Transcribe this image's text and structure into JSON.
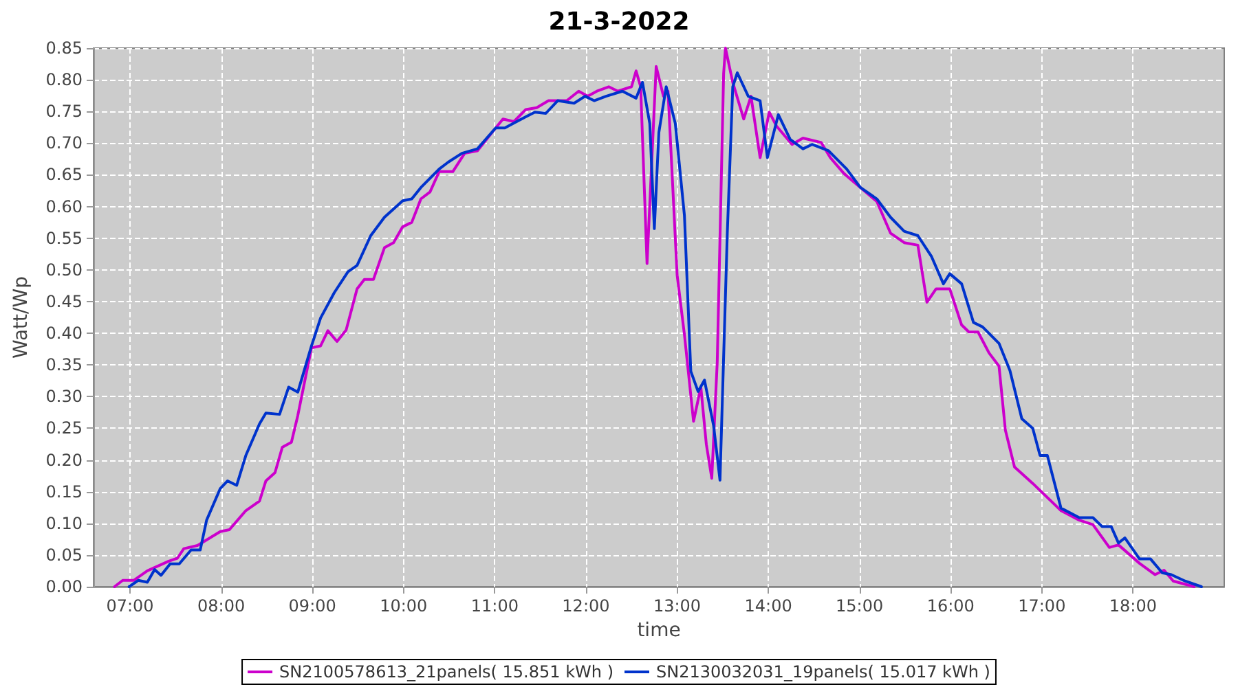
{
  "chart_data": {
    "type": "line",
    "title": "21-3-2022",
    "xlabel": "time",
    "ylabel": "Watt/Wp",
    "legend": "bottom",
    "grid": true,
    "line_style": "solid",
    "xlim": [
      6.6,
      19.0
    ],
    "xticks": [
      {
        "value": 7,
        "label": "07:00"
      },
      {
        "value": 8,
        "label": "08:00"
      },
      {
        "value": 9,
        "label": "09:00"
      },
      {
        "value": 10,
        "label": "10:00"
      },
      {
        "value": 11,
        "label": "11:00"
      },
      {
        "value": 12,
        "label": "12:00"
      },
      {
        "value": 13,
        "label": "13:00"
      },
      {
        "value": 14,
        "label": "14:00"
      },
      {
        "value": 15,
        "label": "15:00"
      },
      {
        "value": 16,
        "label": "16:00"
      },
      {
        "value": 17,
        "label": "17:00"
      },
      {
        "value": 18,
        "label": "18:00"
      }
    ],
    "ylim": [
      0,
      0.85
    ],
    "yticks": [
      {
        "value": 0,
        "label": "0.00"
      },
      {
        "value": 0.05,
        "label": "0.05"
      },
      {
        "value": 0.1,
        "label": "0.10"
      },
      {
        "value": 0.15,
        "label": "0.15"
      },
      {
        "value": 0.2,
        "label": "0.20"
      },
      {
        "value": 0.25,
        "label": "0.25"
      },
      {
        "value": 0.3,
        "label": "0.30"
      },
      {
        "value": 0.35,
        "label": "0.35"
      },
      {
        "value": 0.4,
        "label": "0.40"
      },
      {
        "value": 0.45,
        "label": "0.45"
      },
      {
        "value": 0.5,
        "label": "0.50"
      },
      {
        "value": 0.55,
        "label": "0.55"
      },
      {
        "value": 0.6,
        "label": "0.60"
      },
      {
        "value": 0.65,
        "label": "0.65"
      },
      {
        "value": 0.7,
        "label": "0.70"
      },
      {
        "value": 0.75,
        "label": "0.75"
      },
      {
        "value": 0.8,
        "label": "0.80"
      },
      {
        "value": 0.85,
        "label": "0.85"
      }
    ],
    "series": [
      {
        "name": "SN2100578613_21panels( 15.851 kWh )",
        "color": "#cc00cc",
        "x": [
          6.83,
          6.92,
          7.04,
          7.19,
          7.42,
          7.52,
          7.59,
          7.74,
          7.99,
          8.09,
          8.27,
          8.42,
          8.49,
          8.59,
          8.67,
          8.77,
          8.84,
          8.99,
          9.09,
          9.17,
          9.27,
          9.37,
          9.49,
          9.57,
          9.67,
          9.79,
          9.89,
          9.99,
          10.09,
          10.19,
          10.29,
          10.39,
          10.54,
          10.67,
          10.81,
          11.01,
          11.09,
          11.21,
          11.34,
          11.46,
          11.59,
          11.79,
          11.92,
          12.02,
          12.12,
          12.25,
          12.35,
          12.5,
          12.55,
          12.6,
          12.67,
          12.77,
          12.85,
          12.9,
          13.0,
          13.08,
          13.18,
          13.26,
          13.32,
          13.38,
          13.44,
          13.51,
          13.53,
          13.61,
          13.73,
          13.81,
          13.91,
          14.01,
          14.09,
          14.26,
          14.38,
          14.58,
          14.68,
          14.83,
          15.01,
          15.19,
          15.34,
          15.49,
          15.64,
          15.74,
          15.84,
          15.99,
          16.12,
          16.2,
          16.3,
          16.42,
          16.53,
          16.6,
          16.7,
          16.9,
          17.21,
          17.41,
          17.56,
          17.74,
          17.84,
          18.07,
          18.24,
          18.34,
          18.44,
          18.67
        ],
        "values": [
          0.0,
          0.01,
          0.01,
          0.025,
          0.04,
          0.045,
          0.06,
          0.065,
          0.087,
          0.09,
          0.12,
          0.135,
          0.167,
          0.18,
          0.22,
          0.228,
          0.27,
          0.377,
          0.38,
          0.404,
          0.387,
          0.405,
          0.47,
          0.485,
          0.485,
          0.535,
          0.543,
          0.568,
          0.575,
          0.612,
          0.623,
          0.655,
          0.655,
          0.684,
          0.688,
          0.724,
          0.738,
          0.734,
          0.753,
          0.756,
          0.767,
          0.767,
          0.782,
          0.774,
          0.782,
          0.789,
          0.782,
          0.789,
          0.814,
          0.789,
          0.51,
          0.821,
          0.774,
          0.782,
          0.492,
          0.398,
          0.261,
          0.315,
          0.225,
          0.171,
          0.355,
          0.81,
          0.85,
          0.796,
          0.738,
          0.774,
          0.677,
          0.749,
          0.727,
          0.698,
          0.708,
          0.701,
          0.677,
          0.652,
          0.63,
          0.608,
          0.558,
          0.543,
          0.539,
          0.449,
          0.47,
          0.47,
          0.413,
          0.402,
          0.402,
          0.369,
          0.348,
          0.247,
          0.189,
          0.163,
          0.12,
          0.105,
          0.098,
          0.062,
          0.066,
          0.037,
          0.019,
          0.026,
          0.009,
          0.0
        ]
      },
      {
        "name": "SN2130032031_19panels( 15.017 kWh )",
        "color": "#0033cc",
        "x": [
          6.99,
          7.09,
          7.19,
          7.27,
          7.34,
          7.44,
          7.54,
          7.67,
          7.77,
          7.84,
          7.99,
          8.07,
          8.17,
          8.27,
          8.42,
          8.49,
          8.64,
          8.74,
          8.84,
          8.99,
          9.09,
          9.24,
          9.39,
          9.49,
          9.64,
          9.79,
          9.99,
          10.09,
          10.19,
          10.39,
          10.49,
          10.64,
          10.81,
          11.01,
          11.11,
          11.24,
          11.44,
          11.56,
          11.69,
          11.87,
          11.99,
          12.09,
          12.22,
          12.4,
          12.55,
          12.62,
          12.7,
          12.75,
          12.8,
          12.88,
          12.98,
          13.08,
          13.15,
          13.23,
          13.3,
          13.4,
          13.47,
          13.55,
          13.61,
          13.66,
          13.78,
          13.91,
          13.99,
          14.11,
          14.24,
          14.38,
          14.48,
          14.66,
          14.86,
          15.01,
          15.19,
          15.34,
          15.49,
          15.64,
          15.79,
          15.92,
          15.99,
          16.12,
          16.25,
          16.35,
          16.53,
          16.65,
          16.78,
          16.9,
          16.98,
          17.06,
          17.21,
          17.41,
          17.56,
          17.66,
          17.76,
          17.84,
          17.91,
          18.07,
          18.19,
          18.32,
          18.42,
          18.57,
          18.75
        ],
        "values": [
          0.0,
          0.01,
          0.007,
          0.027,
          0.018,
          0.036,
          0.036,
          0.058,
          0.058,
          0.105,
          0.155,
          0.167,
          0.16,
          0.207,
          0.257,
          0.274,
          0.272,
          0.315,
          0.307,
          0.38,
          0.424,
          0.464,
          0.497,
          0.507,
          0.554,
          0.583,
          0.609,
          0.612,
          0.63,
          0.659,
          0.67,
          0.684,
          0.691,
          0.724,
          0.724,
          0.734,
          0.749,
          0.747,
          0.767,
          0.763,
          0.774,
          0.767,
          0.774,
          0.782,
          0.771,
          0.796,
          0.731,
          0.565,
          0.717,
          0.789,
          0.731,
          0.586,
          0.34,
          0.308,
          0.326,
          0.254,
          0.168,
          0.557,
          0.789,
          0.811,
          0.774,
          0.767,
          0.677,
          0.745,
          0.706,
          0.691,
          0.698,
          0.688,
          0.659,
          0.63,
          0.612,
          0.583,
          0.561,
          0.554,
          0.521,
          0.478,
          0.494,
          0.478,
          0.417,
          0.41,
          0.384,
          0.341,
          0.265,
          0.25,
          0.207,
          0.207,
          0.124,
          0.109,
          0.109,
          0.095,
          0.095,
          0.069,
          0.077,
          0.044,
          0.044,
          0.022,
          0.019,
          0.009,
          0.0
        ]
      }
    ]
  }
}
